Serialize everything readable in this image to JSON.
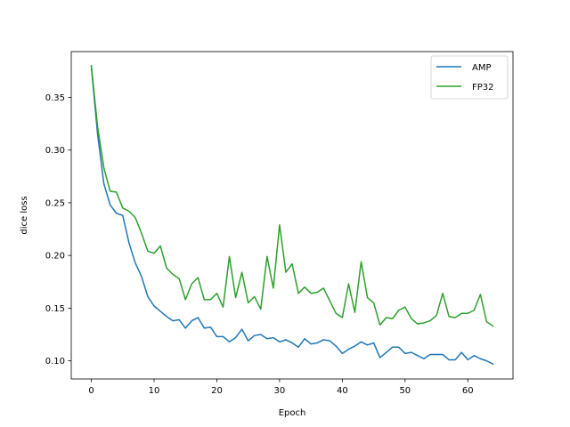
{
  "chart_data": {
    "type": "line",
    "title": "",
    "xlabel": "Epoch",
    "ylabel": "dice loss",
    "xlim": [
      -3.2,
      67.2
    ],
    "ylim": [
      0.0828,
      0.3934
    ],
    "xticks": [
      0,
      10,
      20,
      30,
      40,
      50,
      60
    ],
    "yticks": [
      0.1,
      0.15,
      0.2,
      0.25,
      0.3,
      0.35
    ],
    "xtick_labels": [
      "0",
      "10",
      "20",
      "30",
      "40",
      "50",
      "60"
    ],
    "ytick_labels": [
      "0.10",
      "0.15",
      "0.20",
      "0.25",
      "0.30",
      "0.35"
    ],
    "grid": false,
    "legend_position": "top-right",
    "x": [
      0,
      1,
      2,
      3,
      4,
      5,
      6,
      7,
      8,
      9,
      10,
      11,
      12,
      13,
      14,
      15,
      16,
      17,
      18,
      19,
      20,
      21,
      22,
      23,
      24,
      25,
      26,
      27,
      28,
      29,
      30,
      31,
      32,
      33,
      34,
      35,
      36,
      37,
      38,
      39,
      40,
      41,
      42,
      43,
      44,
      45,
      46,
      47,
      48,
      49,
      50,
      51,
      52,
      53,
      54,
      55,
      56,
      57,
      58,
      59,
      60,
      61,
      62,
      63,
      64
    ],
    "series": [
      {
        "name": "AMP",
        "color": "#1f77b4",
        "values": [
          0.379,
          0.315,
          0.268,
          0.248,
          0.24,
          0.238,
          0.212,
          0.193,
          0.18,
          0.161,
          0.152,
          0.147,
          0.142,
          0.138,
          0.139,
          0.131,
          0.138,
          0.141,
          0.131,
          0.132,
          0.123,
          0.123,
          0.118,
          0.122,
          0.13,
          0.119,
          0.124,
          0.125,
          0.121,
          0.122,
          0.118,
          0.12,
          0.117,
          0.113,
          0.121,
          0.116,
          0.117,
          0.12,
          0.119,
          0.114,
          0.107,
          0.111,
          0.114,
          0.118,
          0.115,
          0.117,
          0.103,
          0.108,
          0.113,
          0.113,
          0.107,
          0.108,
          0.105,
          0.102,
          0.106,
          0.106,
          0.106,
          0.101,
          0.101,
          0.108,
          0.101,
          0.105,
          0.102,
          0.1,
          0.097
        ]
      },
      {
        "name": "FP32",
        "color": "#2ca02c",
        "values": [
          0.38,
          0.322,
          0.283,
          0.261,
          0.26,
          0.245,
          0.242,
          0.236,
          0.221,
          0.204,
          0.202,
          0.209,
          0.188,
          0.182,
          0.178,
          0.158,
          0.173,
          0.179,
          0.158,
          0.158,
          0.164,
          0.151,
          0.199,
          0.16,
          0.184,
          0.155,
          0.161,
          0.149,
          0.199,
          0.169,
          0.229,
          0.184,
          0.192,
          0.164,
          0.17,
          0.164,
          0.165,
          0.169,
          0.157,
          0.145,
          0.141,
          0.173,
          0.146,
          0.194,
          0.16,
          0.155,
          0.134,
          0.141,
          0.14,
          0.148,
          0.151,
          0.14,
          0.135,
          0.136,
          0.138,
          0.143,
          0.164,
          0.142,
          0.141,
          0.145,
          0.145,
          0.148,
          0.163,
          0.137,
          0.133
        ]
      }
    ]
  }
}
